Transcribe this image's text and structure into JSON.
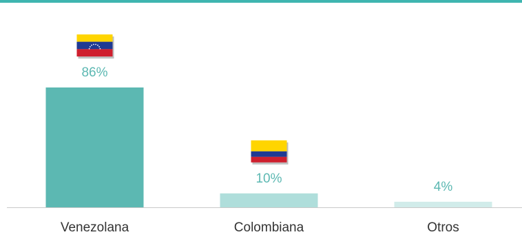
{
  "chart_data": {
    "type": "bar",
    "categories": [
      "Venezolana",
      "Colombiana",
      "Otros"
    ],
    "values": [
      86,
      10,
      4
    ],
    "value_labels": [
      "86%",
      "10%",
      "4%"
    ],
    "ylim": [
      0,
      86
    ],
    "grid": false,
    "bar_colors": [
      "#5cb8b2",
      "#afdedb",
      "#d1ecea"
    ],
    "label_color": "#5cb8b2",
    "accent_color": "#3fb5b0",
    "flags": [
      {
        "category": "Venezolana",
        "icon": "venezuela-flag-icon",
        "colors": [
          "#ffd500",
          "#1f3a93",
          "#cf1f2e"
        ]
      },
      {
        "category": "Colombiana",
        "icon": "colombia-flag-icon",
        "colors": [
          "#ffd500",
          "#1f3a93",
          "#cf1f2e"
        ]
      },
      {
        "category": "Otros",
        "icon": "",
        "colors": []
      }
    ]
  }
}
